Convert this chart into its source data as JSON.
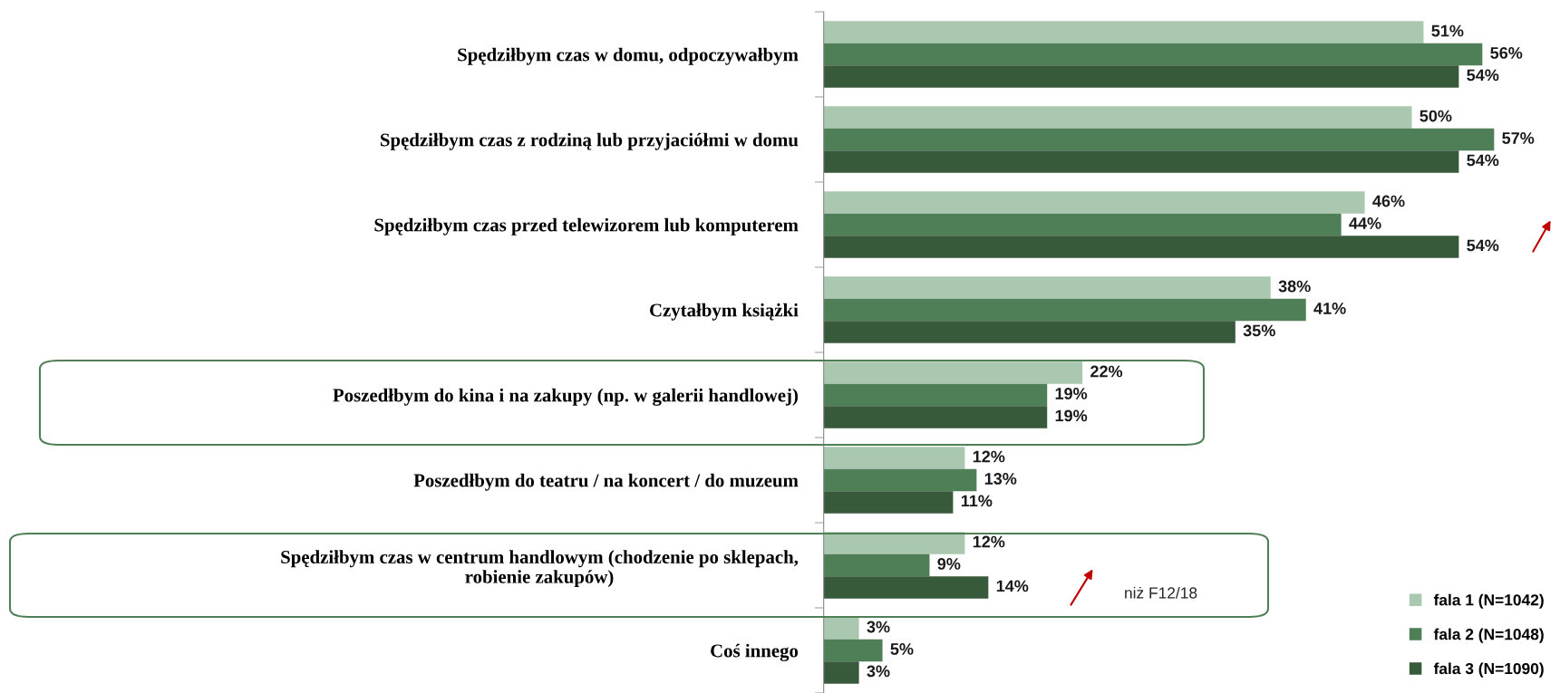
{
  "chart_data": {
    "type": "bar",
    "orientation": "horizontal",
    "categories": [
      "Spędziłbym czas w domu, odpoczywałbym",
      "Spędziłbym czas z rodziną lub przyjaciółmi w domu",
      "Spędziłbym czas przed telewizorem lub komputerem",
      "Czytałbym książki",
      "Poszedłbym do kina i na zakupy (np. w galerii handlowej)",
      "Poszedłbym do teatru / na koncert / do muzeum",
      "Spędziłbym czas w centrum handlowym (chodzenie po sklepach,\nrobienie zakupów)",
      "Coś innego"
    ],
    "series": [
      {
        "name": "fala 1 (N=1042)",
        "color": "#a9c8af",
        "values": [
          51,
          50,
          46,
          38,
          22,
          12,
          12,
          3
        ],
        "value_labels": [
          "51%",
          "50%",
          "46%",
          "38%",
          "22%",
          "12%",
          "12%",
          "3%"
        ]
      },
      {
        "name": "fala 2 (N=1048)",
        "color": "#4f7f56",
        "values": [
          56,
          57,
          44,
          41,
          19,
          13,
          9,
          5
        ],
        "value_labels": [
          "56%",
          "57%",
          "44%",
          "41%",
          "19%",
          "13%",
          "9%",
          "5%"
        ]
      },
      {
        "name": "fala 3 (N=1090)",
        "color": "#375a3b",
        "values": [
          54,
          54,
          54,
          35,
          19,
          11,
          14,
          3
        ],
        "value_labels": [
          "54%",
          "54%",
          "54%",
          "35%",
          "19%",
          "11%",
          "14%",
          "3%"
        ]
      }
    ],
    "annotations": [
      "niż F12/18"
    ],
    "legend": "bottom right"
  }
}
